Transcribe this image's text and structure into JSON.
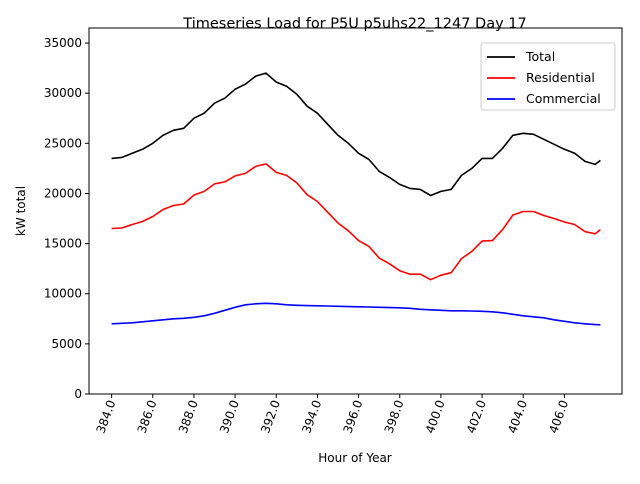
{
  "chart_data": {
    "type": "line",
    "title": "Timeseries Load for P5U p5uhs22_1247  Day 17",
    "xlabel": "Hour of Year",
    "ylabel": "kW total",
    "xlim": [
      382.9,
      408.8
    ],
    "ylim": [
      0,
      36500
    ],
    "xticks": [
      384,
      386,
      388,
      390,
      392,
      394,
      396,
      398,
      400,
      402,
      404,
      406
    ],
    "xtick_labels": [
      "384.0",
      "386.0",
      "388.0",
      "390.0",
      "392.0",
      "394.0",
      "396.0",
      "398.0",
      "400.0",
      "402.0",
      "404.0",
      "406.0"
    ],
    "yticks": [
      0,
      5000,
      10000,
      15000,
      20000,
      25000,
      30000,
      35000
    ],
    "ytick_labels": [
      "0",
      "5000",
      "10000",
      "15000",
      "20000",
      "25000",
      "30000",
      "35000"
    ],
    "grid": false,
    "legend_placement": "top-right",
    "x": [
      384,
      384.5,
      385,
      385.5,
      386,
      386.5,
      387,
      387.5,
      388,
      388.5,
      389,
      389.5,
      390,
      390.5,
      391,
      391.5,
      392,
      392.5,
      393,
      393.5,
      394,
      394.5,
      395,
      395.5,
      396,
      396.5,
      397,
      397.5,
      398,
      398.5,
      399,
      399.5,
      400,
      400.5,
      401,
      401.5,
      402,
      402.5,
      403,
      403.5,
      404,
      404.5,
      405,
      405.5,
      406,
      406.5,
      407,
      407.5,
      407.75
    ],
    "series": [
      {
        "name": "Total",
        "color": "#000000",
        "values": [
          23500,
          23600,
          24000,
          24400,
          25000,
          25800,
          26300,
          26500,
          27500,
          28000,
          29000,
          29500,
          30400,
          30900,
          31700,
          32000,
          31100,
          30700,
          29900,
          28700,
          28000,
          26900,
          25800,
          25000,
          24000,
          23400,
          22200,
          21600,
          20900,
          20500,
          20400,
          19800,
          20200,
          20400,
          21800,
          22500,
          23500,
          23500,
          24500,
          25800,
          26000,
          25900,
          25400,
          24900,
          24400,
          24000,
          23200,
          22900,
          23300
        ]
      },
      {
        "name": "Residential",
        "color": "#ff0000",
        "values": [
          16500,
          16550,
          16900,
          17200,
          17700,
          18400,
          18800,
          18950,
          19850,
          20200,
          20950,
          21150,
          21750,
          22000,
          22700,
          22950,
          22100,
          21800,
          21050,
          19880,
          19200,
          18120,
          17050,
          16280,
          15300,
          14720,
          13550,
          12980,
          12300,
          11950,
          11950,
          11400,
          11850,
          12100,
          13500,
          14220,
          15250,
          15300,
          16400,
          17850,
          18200,
          18200,
          17800,
          17500,
          17150,
          16900,
          16200,
          15980,
          16400
        ]
      },
      {
        "name": "Commercial",
        "color": "#0000ff",
        "values": [
          7000,
          7050,
          7100,
          7200,
          7300,
          7400,
          7500,
          7550,
          7650,
          7800,
          8050,
          8350,
          8650,
          8900,
          9000,
          9050,
          9000,
          8900,
          8850,
          8820,
          8800,
          8780,
          8750,
          8720,
          8700,
          8680,
          8650,
          8620,
          8600,
          8550,
          8450,
          8400,
          8350,
          8300,
          8300,
          8280,
          8250,
          8200,
          8100,
          7950,
          7800,
          7700,
          7600,
          7400,
          7250,
          7100,
          7000,
          6920,
          6900
        ]
      }
    ]
  }
}
